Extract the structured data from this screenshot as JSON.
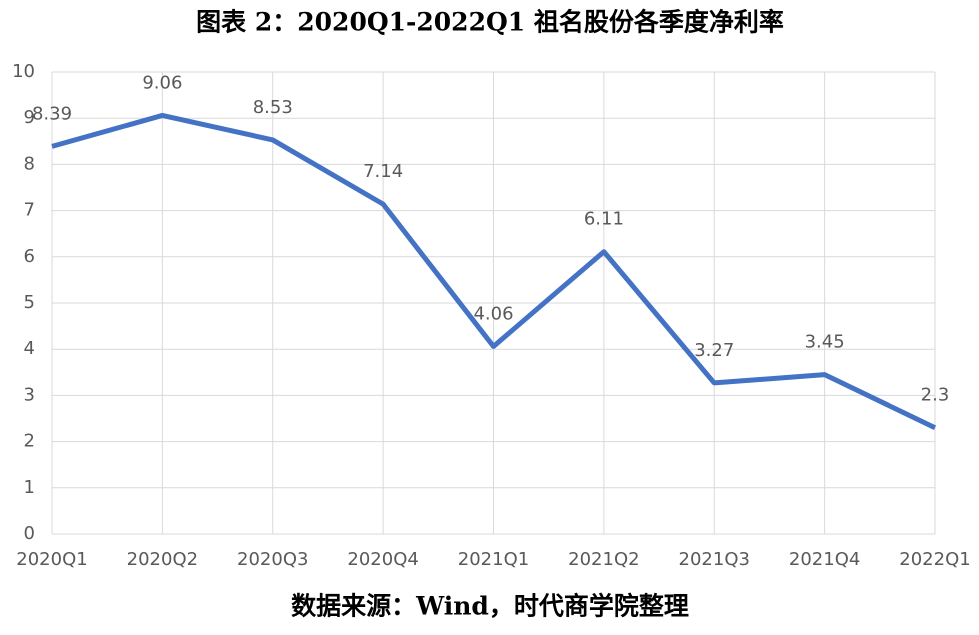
{
  "chart_data": {
    "type": "line",
    "title": "图表 2：2020Q1-2022Q1 祖名股份各季度净利率",
    "source": "数据来源：Wind，时代商学院整理",
    "categories": [
      "2020Q1",
      "2020Q2",
      "2020Q3",
      "2020Q4",
      "2021Q1",
      "2021Q2",
      "2021Q3",
      "2021Q4",
      "2022Q1"
    ],
    "series": [
      {
        "name": "净利率",
        "color": "#4472c4",
        "values": [
          8.39,
          9.06,
          8.53,
          7.14,
          4.06,
          6.11,
          3.27,
          3.45,
          2.3
        ]
      }
    ],
    "ylim": [
      0,
      10
    ],
    "yticks": [
      0,
      1,
      2,
      3,
      4,
      5,
      6,
      7,
      8,
      9,
      10
    ],
    "grid": true,
    "data_labels": true
  }
}
